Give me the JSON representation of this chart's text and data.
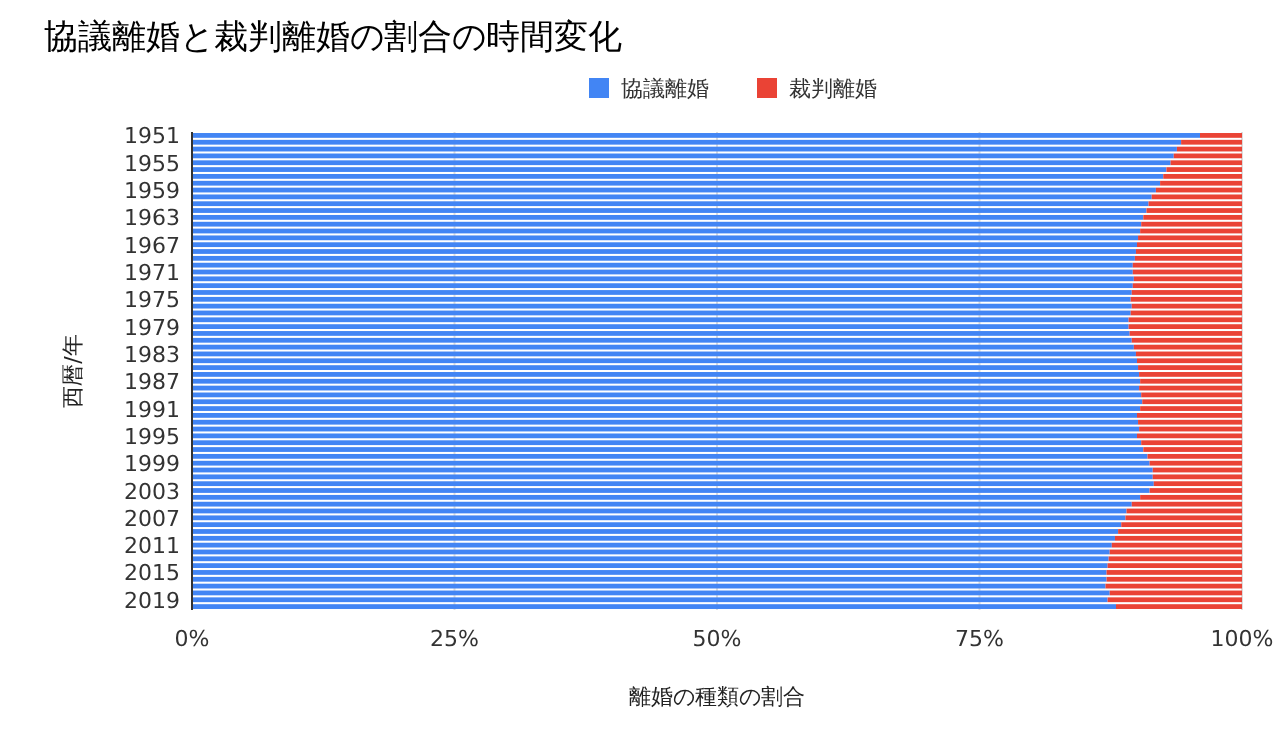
{
  "chart_data": {
    "type": "bar",
    "orientation": "horizontal",
    "stacked": true,
    "title": "協議離婚と裁判離婚の割合の時間変化",
    "xlabel": "離婚の種類の割合",
    "ylabel": "西暦/年",
    "categories": [
      "1951",
      null,
      null,
      null,
      "1955",
      null,
      null,
      null,
      "1959",
      null,
      null,
      null,
      "1963",
      null,
      null,
      null,
      "1967",
      null,
      null,
      null,
      "1971",
      null,
      null,
      null,
      "1975",
      null,
      null,
      null,
      "1979",
      null,
      null,
      null,
      "1983",
      null,
      null,
      null,
      "1987",
      null,
      null,
      null,
      "1991",
      null,
      null,
      null,
      "1995",
      null,
      null,
      null,
      "1999",
      null,
      null,
      null,
      "2003",
      null,
      null,
      null,
      "2007",
      null,
      null,
      null,
      "2011",
      null,
      null,
      null,
      "2015",
      null,
      null,
      null,
      "2019",
      null
    ],
    "series": [
      {
        "name": "協議離婚",
        "color": "#4285f4",
        "values": [
          96.0,
          94.2,
          93.8,
          93.5,
          93.2,
          92.8,
          92.5,
          92.2,
          91.8,
          91.4,
          91.1,
          90.9,
          90.6,
          90.4,
          90.3,
          90.1,
          90.0,
          89.9,
          89.8,
          89.6,
          89.6,
          89.7,
          89.6,
          89.5,
          89.4,
          89.5,
          89.4,
          89.2,
          89.2,
          89.3,
          89.5,
          89.7,
          89.9,
          90.0,
          90.1,
          90.2,
          90.3,
          90.2,
          90.4,
          90.5,
          90.3,
          90.0,
          90.1,
          90.2,
          90.0,
          90.4,
          90.6,
          91.0,
          91.2,
          91.5,
          91.5,
          91.6,
          91.2,
          90.3,
          89.5,
          89.0,
          88.9,
          88.5,
          88.2,
          87.9,
          87.6,
          87.4,
          87.3,
          87.2,
          87.1,
          87.1,
          87.0,
          87.4,
          87.2,
          88.0
        ]
      },
      {
        "name": "裁判離婚",
        "color": "#ea4335",
        "values": [
          4.0,
          5.8,
          6.2,
          6.5,
          6.8,
          7.2,
          7.5,
          7.8,
          8.2,
          8.6,
          8.9,
          9.1,
          9.4,
          9.6,
          9.7,
          9.9,
          10.0,
          10.1,
          10.2,
          10.4,
          10.4,
          10.3,
          10.4,
          10.5,
          10.6,
          10.5,
          10.6,
          10.8,
          10.8,
          10.7,
          10.5,
          10.3,
          10.1,
          10.0,
          9.9,
          9.8,
          9.7,
          9.8,
          9.6,
          9.5,
          9.7,
          10.0,
          9.9,
          9.8,
          10.0,
          9.6,
          9.4,
          9.0,
          8.8,
          8.5,
          8.5,
          8.4,
          8.8,
          9.7,
          10.5,
          11.0,
          11.1,
          11.5,
          11.8,
          12.1,
          12.4,
          12.6,
          12.7,
          12.8,
          12.9,
          12.9,
          13.0,
          12.6,
          12.8,
          12.0
        ]
      }
    ],
    "xlim": [
      0,
      100
    ],
    "xticks": [
      {
        "value": 0,
        "label": "0%"
      },
      {
        "value": 25,
        "label": "25%"
      },
      {
        "value": 50,
        "label": "50%"
      },
      {
        "value": 75,
        "label": "75%"
      },
      {
        "value": 100,
        "label": "100%"
      }
    ],
    "grid": "x",
    "legend": "top"
  }
}
